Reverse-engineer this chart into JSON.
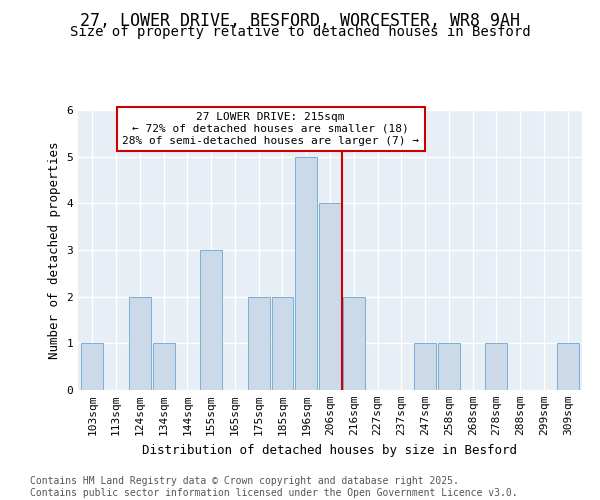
{
  "title_line1": "27, LOWER DRIVE, BESFORD, WORCESTER, WR8 9AH",
  "title_line2": "Size of property relative to detached houses in Besford",
  "xlabel": "Distribution of detached houses by size in Besford",
  "ylabel": "Number of detached properties",
  "categories": [
    "103sqm",
    "113sqm",
    "124sqm",
    "134sqm",
    "144sqm",
    "155sqm",
    "165sqm",
    "175sqm",
    "185sqm",
    "196sqm",
    "206sqm",
    "216sqm",
    "227sqm",
    "237sqm",
    "247sqm",
    "258sqm",
    "268sqm",
    "278sqm",
    "288sqm",
    "299sqm",
    "309sqm"
  ],
  "values": [
    1,
    0,
    2,
    1,
    0,
    3,
    0,
    2,
    2,
    5,
    4,
    2,
    0,
    0,
    1,
    1,
    0,
    1,
    0,
    0,
    1
  ],
  "bar_color": "#ccd9e8",
  "bar_edge_color": "#7aafd4",
  "reference_line_x": 10.5,
  "reference_line_color": "#cc0000",
  "annotation_text": "27 LOWER DRIVE: 215sqm\n← 72% of detached houses are smaller (18)\n28% of semi-detached houses are larger (7) →",
  "annotation_box_color": "#cc0000",
  "ylim": [
    0,
    6
  ],
  "yticks": [
    0,
    1,
    2,
    3,
    4,
    5,
    6
  ],
  "plot_bg_color": "#e8eef5",
  "fig_bg_color": "#ffffff",
  "footer_text": "Contains HM Land Registry data © Crown copyright and database right 2025.\nContains public sector information licensed under the Open Government Licence v3.0.",
  "title_fontsize": 12,
  "subtitle_fontsize": 10,
  "axis_label_fontsize": 9,
  "tick_fontsize": 8,
  "footer_fontsize": 7,
  "annotation_fontsize": 8
}
